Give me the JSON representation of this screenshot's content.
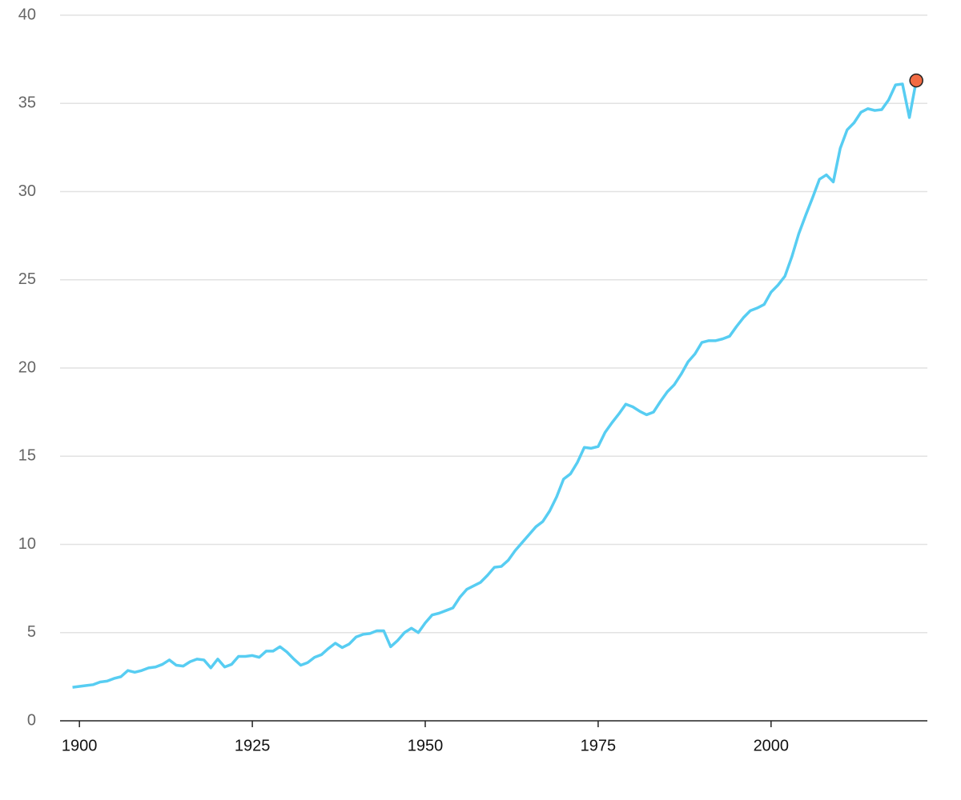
{
  "chart_data": {
    "type": "line",
    "x": [
      1899,
      1900,
      1901,
      1902,
      1903,
      1904,
      1905,
      1906,
      1907,
      1908,
      1909,
      1910,
      1911,
      1912,
      1913,
      1914,
      1915,
      1916,
      1917,
      1918,
      1919,
      1920,
      1921,
      1922,
      1923,
      1924,
      1925,
      1926,
      1927,
      1928,
      1929,
      1930,
      1931,
      1932,
      1933,
      1934,
      1935,
      1936,
      1937,
      1938,
      1939,
      1940,
      1941,
      1942,
      1943,
      1944,
      1945,
      1946,
      1947,
      1948,
      1949,
      1950,
      1951,
      1952,
      1953,
      1954,
      1955,
      1956,
      1957,
      1958,
      1959,
      1960,
      1961,
      1962,
      1963,
      1964,
      1965,
      1966,
      1967,
      1968,
      1969,
      1970,
      1971,
      1972,
      1973,
      1974,
      1975,
      1976,
      1977,
      1978,
      1979,
      1980,
      1981,
      1982,
      1983,
      1984,
      1985,
      1986,
      1987,
      1988,
      1989,
      1990,
      1991,
      1992,
      1993,
      1994,
      1995,
      1996,
      1997,
      1998,
      1999,
      2000,
      2001,
      2002,
      2003,
      2004,
      2005,
      2006,
      2007,
      2008,
      2009,
      2010,
      2011,
      2012,
      2013,
      2014,
      2015,
      2016,
      2017,
      2018,
      2019,
      2020,
      2021
    ],
    "series": [
      {
        "color": "#57cdf2",
        "marker_color": "#f26b43",
        "values": [
          1.9,
          1.95,
          2.0,
          2.05,
          2.2,
          2.25,
          2.4,
          2.5,
          2.85,
          2.75,
          2.85,
          3.0,
          3.05,
          3.2,
          3.45,
          3.15,
          3.1,
          3.35,
          3.5,
          3.45,
          3.0,
          3.5,
          3.05,
          3.2,
          3.65,
          3.65,
          3.7,
          3.6,
          3.95,
          3.95,
          4.2,
          3.9,
          3.5,
          3.15,
          3.3,
          3.6,
          3.75,
          4.1,
          4.4,
          4.15,
          4.35,
          4.75,
          4.9,
          4.95,
          5.1,
          5.1,
          4.2,
          4.55,
          5.0,
          5.25,
          5.0,
          5.55,
          6.0,
          6.1,
          6.25,
          6.4,
          7.0,
          7.45,
          7.65,
          7.85,
          8.25,
          8.7,
          8.75,
          9.1,
          9.65,
          10.1,
          10.55,
          11.0,
          11.3,
          11.9,
          12.7,
          13.7,
          14.0,
          14.65,
          15.5,
          15.45,
          15.55,
          16.35,
          16.9,
          17.4,
          17.95,
          17.8,
          17.55,
          17.35,
          17.5,
          18.1,
          18.65,
          19.05,
          19.65,
          20.35,
          20.8,
          21.45,
          21.55,
          21.55,
          21.65,
          21.8,
          22.35,
          22.85,
          23.25,
          23.4,
          23.6,
          24.3,
          24.7,
          25.2,
          26.3,
          27.6,
          28.65,
          29.65,
          30.7,
          30.95,
          30.55,
          32.45,
          33.5,
          33.9,
          34.5,
          34.7,
          34.6,
          34.65,
          35.2,
          36.05,
          36.1,
          34.2,
          36.3
        ]
      }
    ],
    "xlim": [
      1897.2,
      2022.6
    ],
    "xticks": [
      1900,
      1925,
      1950,
      1975,
      2000
    ],
    "ylim": [
      0,
      40
    ],
    "yticks": [
      0,
      5,
      10,
      15,
      20,
      25,
      30,
      35,
      40
    ],
    "grid": true
  }
}
